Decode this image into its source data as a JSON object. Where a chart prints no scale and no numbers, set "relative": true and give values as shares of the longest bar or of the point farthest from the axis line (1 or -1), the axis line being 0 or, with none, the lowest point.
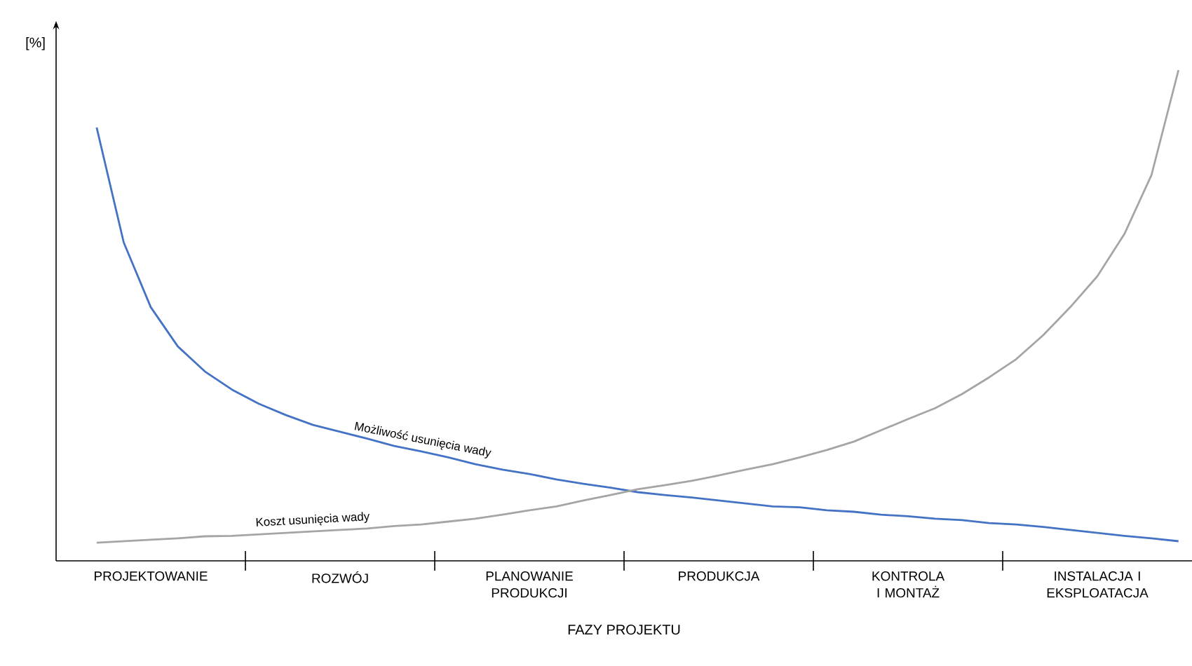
{
  "chart_data": {
    "type": "line",
    "relative": true,
    "xlabel": "FAZY PROJEKTU",
    "ylabel": "[%]",
    "categories": [
      null,
      null,
      null,
      "PROJEKTOWANIE",
      null,
      null,
      null,
      null,
      null,
      null,
      "ROZWÓJ",
      null,
      null,
      null,
      null,
      null,
      null,
      "PLANOWANIE PRODUKCJI",
      null,
      null,
      null,
      null,
      null,
      null,
      "PRODUKCJA",
      null,
      null,
      null,
      null,
      null,
      null,
      "KONTROLA I MONTAŻ",
      null,
      null,
      null,
      null,
      null,
      null,
      "INSTALACJA I EKSPLOATACJA",
      null,
      null,
      null
    ],
    "series": [
      {
        "name": "Możliwość usunięcia wady",
        "color": "#4472c4",
        "values": [
          null,
          0.883,
          0.649,
          0.517,
          0.437,
          0.386,
          0.349,
          0.32,
          0.297,
          0.277,
          0.263,
          0.249,
          0.234,
          0.223,
          0.211,
          0.197,
          0.186,
          0.177,
          0.166,
          0.157,
          0.149,
          0.14,
          0.134,
          0.129,
          0.123,
          0.117,
          0.111,
          0.109,
          0.103,
          0.1,
          0.094,
          0.091,
          0.086,
          0.083,
          0.077,
          0.074,
          0.069,
          0.063,
          0.057,
          0.051,
          0.046,
          0.04
        ]
      },
      {
        "name": "Koszt usunięcia wady",
        "color": "#a5a5a5",
        "values": [
          null,
          0.037,
          0.04,
          0.043,
          0.046,
          0.05,
          0.051,
          0.054,
          0.057,
          0.06,
          0.063,
          0.066,
          0.071,
          0.074,
          0.08,
          0.086,
          0.094,
          0.103,
          0.111,
          0.123,
          0.134,
          0.146,
          0.154,
          0.163,
          0.174,
          0.186,
          0.197,
          0.211,
          0.226,
          0.243,
          0.266,
          0.289,
          0.311,
          0.34,
          0.374,
          0.411,
          0.46,
          0.517,
          0.58,
          0.666,
          0.786,
          1.0
        ]
      }
    ]
  }
}
